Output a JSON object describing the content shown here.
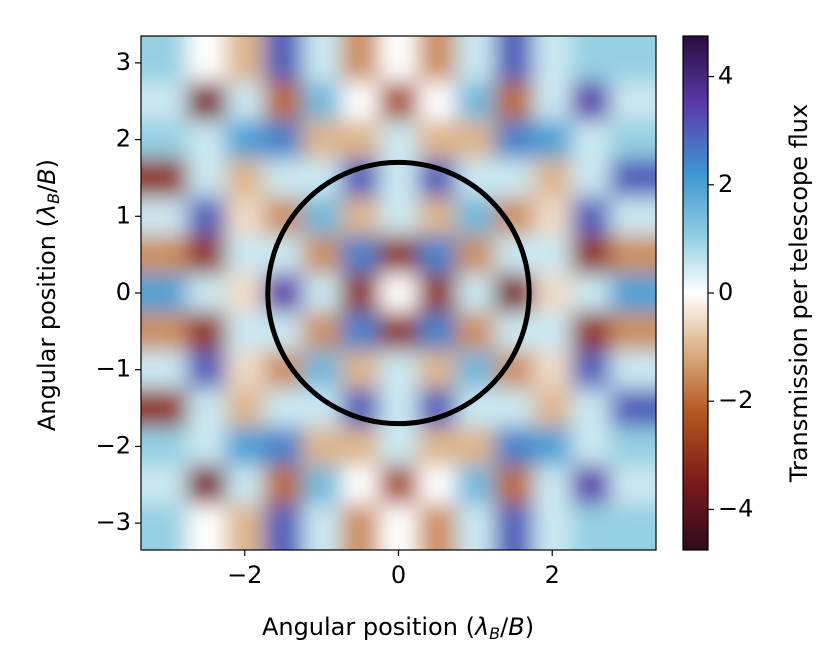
{
  "chart_data": {
    "type": "heatmap",
    "xlabel": [
      "Angular position (",
      "λ",
      "B",
      "/",
      "B",
      ")"
    ],
    "ylabel": [
      "Angular position (",
      "λ",
      "B",
      "/",
      "B",
      ")"
    ],
    "colorbar_label": "Transmission per telescope flux",
    "x": [
      -3,
      -2.5,
      -2,
      -1.5,
      -1,
      -0.5,
      0,
      0.5,
      1,
      1.5,
      2,
      2.5,
      3
    ],
    "y": [
      3,
      2.5,
      2,
      1.5,
      1,
      0.5,
      0,
      -0.5,
      -1,
      -1.5,
      -2,
      -2.5,
      -3
    ],
    "z": [
      [
        1,
        0,
        -1,
        3,
        0.5,
        -1.5,
        0,
        -1.5,
        0.5,
        3,
        0.5,
        1,
        1
      ],
      [
        0.5,
        -3.5,
        0.5,
        -2,
        1.5,
        0,
        -2.5,
        0,
        1.5,
        -2,
        0.5,
        3.5,
        0.5
      ],
      [
        1,
        0.5,
        2,
        2.5,
        -1,
        -1,
        0.5,
        -1,
        -1,
        2.5,
        2,
        0.5,
        1
      ],
      [
        -3,
        0.5,
        -1,
        0.5,
        0.5,
        3,
        0.5,
        3,
        0.5,
        0.5,
        -1,
        0.5,
        3
      ],
      [
        0.5,
        3,
        -0.5,
        -1.5,
        1.5,
        -1,
        0.5,
        -1,
        1.5,
        -1.5,
        -0.5,
        3,
        0.5
      ],
      [
        -1.5,
        -3,
        0.5,
        0.5,
        -1.5,
        2.5,
        -3,
        2.5,
        -1.5,
        0.5,
        0.5,
        -3,
        -1.5
      ],
      [
        2,
        0.5,
        -0.5,
        3.5,
        0.5,
        -3,
        0,
        -3,
        0.5,
        -3.5,
        -0.5,
        0.5,
        2
      ],
      [
        -1.5,
        -3,
        0.5,
        0.5,
        -1.5,
        2.5,
        -3,
        2.5,
        -1.5,
        0.5,
        0.5,
        -3,
        -1.5
      ],
      [
        0.5,
        3,
        -0.5,
        -1.5,
        1.5,
        -1,
        0.5,
        -1,
        1.5,
        -1.5,
        -0.5,
        3,
        0.5
      ],
      [
        -3,
        0.5,
        -1,
        0.5,
        0.5,
        3,
        0.5,
        3,
        0.5,
        0.5,
        -1,
        0.5,
        3
      ],
      [
        1,
        0.5,
        2,
        2.5,
        -1,
        -1,
        0.5,
        -1,
        -1,
        2.5,
        2,
        0.5,
        1
      ],
      [
        0.5,
        -3.5,
        0.5,
        -2,
        1.5,
        0,
        -2.5,
        0,
        1.5,
        -2,
        0.5,
        3.5,
        0.5
      ],
      [
        1,
        0,
        -1,
        3,
        0.5,
        -1.5,
        0,
        -1.5,
        0.5,
        3,
        0.5,
        1,
        1
      ]
    ],
    "xlim": [
      -3.35,
      3.35
    ],
    "ylim": [
      -3.35,
      3.35
    ],
    "xticks": [
      {
        "value": -2,
        "label": "−2"
      },
      0,
      2
    ],
    "yticks": [
      {
        "value": -3,
        "label": "−3"
      },
      {
        "value": -2,
        "label": "−2"
      },
      {
        "value": -1,
        "label": "−1"
      },
      0,
      1,
      2,
      3
    ],
    "zlim": [
      -4.75,
      4.75
    ],
    "zticks": [
      {
        "value": -4,
        "label": "−4"
      },
      {
        "value": -2,
        "label": "−2"
      },
      0,
      2,
      4
    ],
    "colormap": [
      [
        -4.75,
        "#2f0b1c"
      ],
      [
        -3.5,
        "#7a1a1c"
      ],
      [
        -2.2,
        "#b5581e"
      ],
      [
        -1,
        "#ddb58c"
      ],
      [
        0,
        "#ffffff"
      ],
      [
        1,
        "#95d0e2"
      ],
      [
        2.2,
        "#3f96d4"
      ],
      [
        3.5,
        "#5a3aaa"
      ],
      [
        4.75,
        "#2a0c3e"
      ]
    ],
    "circle": {
      "radius": 1.7,
      "color": "#000000"
    }
  }
}
